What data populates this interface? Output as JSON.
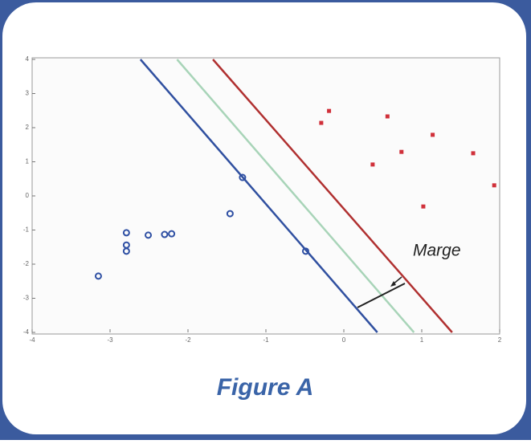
{
  "chart_data": {
    "type": "scatter",
    "xlim": [
      -4,
      2
    ],
    "ylim": [
      -4,
      4
    ],
    "xticks": [
      -4,
      -3,
      -2,
      -1,
      0,
      1,
      2
    ],
    "yticks": [
      -4,
      -3,
      -2,
      -1,
      0,
      1,
      2,
      3,
      4
    ],
    "series": [
      {
        "color": "#2e4fa3",
        "marker": "circle",
        "x": [
          -3.15,
          -2.79,
          -2.79,
          -2.79,
          -2.51,
          -2.3,
          -2.21,
          -1.46,
          -1.3,
          -0.49
        ],
        "values": [
          -2.35,
          -1.08,
          -1.44,
          -1.62,
          -1.15,
          -1.13,
          -1.11,
          -0.52,
          0.54,
          -1.62
        ]
      },
      {
        "color": "#d0303a",
        "marker": "star",
        "x": [
          -0.19,
          -0.29,
          0.56,
          0.74,
          1.14,
          1.66,
          0.37,
          1.02,
          1.93
        ],
        "values": [
          2.49,
          2.14,
          2.33,
          1.29,
          1.79,
          1.25,
          0.92,
          -0.31,
          0.31
        ]
      }
    ],
    "lines": [
      {
        "color": "#3050a0",
        "x": [
          -2.61,
          0.43
        ],
        "values": [
          4,
          -4
        ]
      },
      {
        "color": "#a8d4b8",
        "x": [
          -2.14,
          0.9
        ],
        "values": [
          4,
          -4
        ]
      },
      {
        "color": "#b03030",
        "x": [
          -1.68,
          1.39
        ],
        "values": [
          4,
          -4
        ]
      }
    ],
    "annotation": "Marge"
  },
  "caption": "Figure A"
}
